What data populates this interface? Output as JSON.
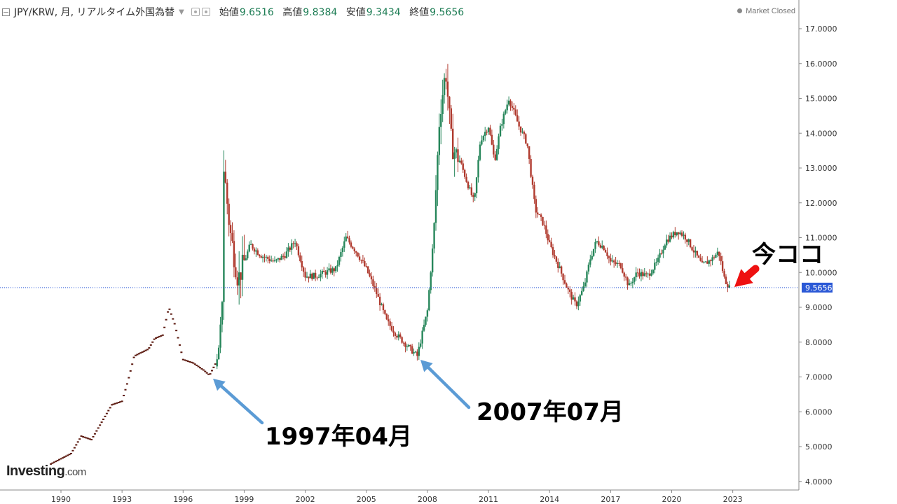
{
  "header": {
    "title": "JPY/KRW, 月, リアルタイム外国為替",
    "open_label": "始値",
    "open_value": "9.6516",
    "high_label": "高値",
    "high_value": "9.8384",
    "low_label": "安値",
    "low_value": "9.3434",
    "close_label": "終値",
    "close_value": "9.5656",
    "collapse_icon": "collapse-icon",
    "settings_icons": [
      "eye-icon",
      "gear-icon"
    ]
  },
  "market_status": "Market Closed",
  "price_tag": "9.5656",
  "annotations": {
    "now": "今ココ",
    "date_1997": "1997年04月",
    "date_2007": "2007年07月"
  },
  "logo": {
    "main": "Investing",
    "suffix": ".com"
  },
  "colors": {
    "up": "#26865a",
    "down": "#b03a2e",
    "dot_early": "#5c1a10",
    "blue_arrow": "#5b9bd5",
    "red_arrow": "#ee1111",
    "price_line": "#2b59d6",
    "price_tag_bg": "#2b59d6"
  },
  "chart_data": {
    "type": "candlestick",
    "series_name": "JPY/KRW",
    "xlabel": "",
    "ylabel": "",
    "ylim": [
      4.0,
      17.5
    ],
    "y_ticks": [
      "17.0000",
      "16.0000",
      "15.0000",
      "14.0000",
      "13.0000",
      "12.0000",
      "11.0000",
      "10.0000",
      "9.0000",
      "8.0000",
      "7.0000",
      "6.0000",
      "5.0000",
      "4.0000"
    ],
    "x_ticks": [
      "1990",
      "1993",
      "1996",
      "1999",
      "2002",
      "2005",
      "2008",
      "2011",
      "2014",
      "2017",
      "2020",
      "2023"
    ],
    "x_range": [
      1989.4,
      2025.8
    ],
    "current_price": 9.5656,
    "keyframes": [
      [
        1989.5,
        4.5
      ],
      [
        1990.5,
        4.8
      ],
      [
        1991.0,
        5.3
      ],
      [
        1991.5,
        5.2
      ],
      [
        1992.0,
        5.7
      ],
      [
        1992.5,
        6.2
      ],
      [
        1993.0,
        6.3
      ],
      [
        1993.3,
        6.9
      ],
      [
        1993.6,
        7.6
      ],
      [
        1994.3,
        7.8
      ],
      [
        1994.6,
        8.1
      ],
      [
        1995.0,
        8.2
      ],
      [
        1995.3,
        9.0
      ],
      [
        1995.6,
        8.5
      ],
      [
        1996.0,
        7.5
      ],
      [
        1996.5,
        7.4
      ],
      [
        1997.0,
        7.2
      ],
      [
        1997.3,
        7.05
      ],
      [
        1997.7,
        7.5
      ],
      [
        1997.9,
        8.6
      ],
      [
        1998.0,
        13.0
      ],
      [
        1998.3,
        11.2
      ],
      [
        1998.7,
        9.8
      ],
      [
        1999.3,
        10.8
      ],
      [
        1999.8,
        10.5
      ],
      [
        2000.5,
        10.3
      ],
      [
        2001.0,
        10.5
      ],
      [
        2001.5,
        10.9
      ],
      [
        2002.0,
        9.9
      ],
      [
        2002.5,
        9.9
      ],
      [
        2003.0,
        10.0
      ],
      [
        2003.5,
        10.1
      ],
      [
        2004.0,
        11.0
      ],
      [
        2004.5,
        10.6
      ],
      [
        2005.0,
        10.1
      ],
      [
        2005.5,
        9.4
      ],
      [
        2006.0,
        8.6
      ],
      [
        2006.5,
        8.2
      ],
      [
        2007.0,
        7.9
      ],
      [
        2007.5,
        7.6
      ],
      [
        2008.0,
        8.9
      ],
      [
        2008.3,
        11.0
      ],
      [
        2008.6,
        14.5
      ],
      [
        2008.9,
        15.8
      ],
      [
        2009.2,
        13.6
      ],
      [
        2009.6,
        13.2
      ],
      [
        2010.0,
        12.5
      ],
      [
        2010.3,
        12.0
      ],
      [
        2010.6,
        13.8
      ],
      [
        2011.0,
        14.2
      ],
      [
        2011.3,
        13.2
      ],
      [
        2011.6,
        14.2
      ],
      [
        2012.0,
        15.0
      ],
      [
        2012.5,
        14.2
      ],
      [
        2012.9,
        13.7
      ],
      [
        2013.3,
        11.8
      ],
      [
        2013.7,
        11.4
      ],
      [
        2014.0,
        10.8
      ],
      [
        2014.5,
        10.1
      ],
      [
        2014.9,
        9.5
      ],
      [
        2015.3,
        9.05
      ],
      [
        2015.7,
        9.6
      ],
      [
        2016.0,
        10.4
      ],
      [
        2016.3,
        10.9
      ],
      [
        2016.7,
        10.7
      ],
      [
        2017.0,
        10.3
      ],
      [
        2017.5,
        10.2
      ],
      [
        2017.9,
        9.6
      ],
      [
        2018.3,
        10.0
      ],
      [
        2018.8,
        9.9
      ],
      [
        2019.3,
        10.3
      ],
      [
        2019.7,
        10.9
      ],
      [
        2020.3,
        11.2
      ],
      [
        2020.7,
        11.0
      ],
      [
        2021.0,
        10.7
      ],
      [
        2021.5,
        10.2
      ],
      [
        2022.0,
        10.4
      ],
      [
        2022.3,
        10.6
      ],
      [
        2022.6,
        9.8
      ],
      [
        2022.9,
        9.5
      ]
    ]
  }
}
